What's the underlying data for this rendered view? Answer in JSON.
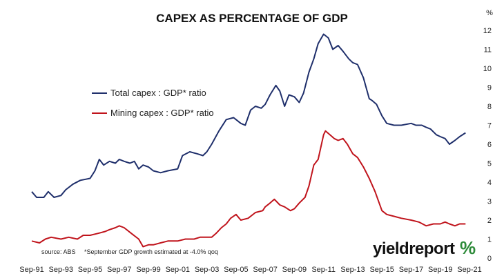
{
  "chart_data": {
    "type": "line",
    "title": "CAPEX AS PERCENTAGE OF GDP",
    "y_unit": "%",
    "ylim": [
      0,
      12
    ],
    "y_ticks": [
      "0",
      "1",
      "2",
      "3",
      "4",
      "5",
      "6",
      "7",
      "8",
      "9",
      "10",
      "11",
      "12"
    ],
    "x_range": [
      1991.67,
      2021.67
    ],
    "x_ticks": [
      {
        "x": 1991.67,
        "label": "Sep-91"
      },
      {
        "x": 1993.67,
        "label": "Sep-93"
      },
      {
        "x": 1995.67,
        "label": "Sep-95"
      },
      {
        "x": 1997.67,
        "label": "Sep-97"
      },
      {
        "x": 1999.67,
        "label": "Sep-99"
      },
      {
        "x": 2001.67,
        "label": "Sep-01"
      },
      {
        "x": 2003.67,
        "label": "Sep-03"
      },
      {
        "x": 2005.67,
        "label": "Sep-05"
      },
      {
        "x": 2007.67,
        "label": "Sep-07"
      },
      {
        "x": 2009.67,
        "label": "Sep-09"
      },
      {
        "x": 2011.67,
        "label": "Sep-11"
      },
      {
        "x": 2013.67,
        "label": "Sep-13"
      },
      {
        "x": 2015.67,
        "label": "Sep-15"
      },
      {
        "x": 2017.67,
        "label": "Sep-17"
      },
      {
        "x": 2019.67,
        "label": "Sep-19"
      },
      {
        "x": 2021.67,
        "label": "Sep-21"
      }
    ],
    "grid": false,
    "legend_position": "upper-left",
    "series": [
      {
        "name": "Total capex : GDP* ratio",
        "color": "#1f2f6b",
        "points": [
          [
            1991.67,
            3.5
          ],
          [
            1992.0,
            3.2
          ],
          [
            1992.5,
            3.2
          ],
          [
            1992.8,
            3.5
          ],
          [
            1993.2,
            3.2
          ],
          [
            1993.67,
            3.3
          ],
          [
            1994.0,
            3.6
          ],
          [
            1994.5,
            3.9
          ],
          [
            1995.0,
            4.1
          ],
          [
            1995.67,
            4.2
          ],
          [
            1996.0,
            4.6
          ],
          [
            1996.3,
            5.2
          ],
          [
            1996.6,
            4.9
          ],
          [
            1997.0,
            5.1
          ],
          [
            1997.4,
            5.0
          ],
          [
            1997.67,
            5.2
          ],
          [
            1998.0,
            5.1
          ],
          [
            1998.4,
            5.0
          ],
          [
            1998.7,
            5.1
          ],
          [
            1999.0,
            4.7
          ],
          [
            1999.3,
            4.9
          ],
          [
            1999.67,
            4.8
          ],
          [
            2000.0,
            4.6
          ],
          [
            2000.5,
            4.5
          ],
          [
            2001.0,
            4.6
          ],
          [
            2001.67,
            4.7
          ],
          [
            2002.0,
            5.4
          ],
          [
            2002.5,
            5.6
          ],
          [
            2003.0,
            5.5
          ],
          [
            2003.4,
            5.4
          ],
          [
            2003.67,
            5.6
          ],
          [
            2004.0,
            6.0
          ],
          [
            2004.5,
            6.7
          ],
          [
            2005.0,
            7.3
          ],
          [
            2005.5,
            7.4
          ],
          [
            2005.67,
            7.3
          ],
          [
            2006.0,
            7.1
          ],
          [
            2006.3,
            7.0
          ],
          [
            2006.67,
            7.8
          ],
          [
            2007.0,
            8.0
          ],
          [
            2007.4,
            7.9
          ],
          [
            2007.67,
            8.1
          ],
          [
            2008.0,
            8.6
          ],
          [
            2008.4,
            9.1
          ],
          [
            2008.67,
            8.8
          ],
          [
            2009.0,
            8.0
          ],
          [
            2009.3,
            8.6
          ],
          [
            2009.67,
            8.5
          ],
          [
            2010.0,
            8.2
          ],
          [
            2010.3,
            8.7
          ],
          [
            2010.67,
            9.8
          ],
          [
            2011.0,
            10.5
          ],
          [
            2011.3,
            11.3
          ],
          [
            2011.67,
            11.8
          ],
          [
            2012.0,
            11.6
          ],
          [
            2012.3,
            11.0
          ],
          [
            2012.67,
            11.2
          ],
          [
            2013.0,
            10.9
          ],
          [
            2013.4,
            10.5
          ],
          [
            2013.67,
            10.3
          ],
          [
            2014.0,
            10.2
          ],
          [
            2014.4,
            9.5
          ],
          [
            2014.8,
            8.4
          ],
          [
            2015.0,
            8.3
          ],
          [
            2015.3,
            8.1
          ],
          [
            2015.67,
            7.5
          ],
          [
            2016.0,
            7.1
          ],
          [
            2016.5,
            7.0
          ],
          [
            2017.0,
            7.0
          ],
          [
            2017.67,
            7.1
          ],
          [
            2018.0,
            7.0
          ],
          [
            2018.4,
            7.0
          ],
          [
            2018.67,
            6.9
          ],
          [
            2019.0,
            6.8
          ],
          [
            2019.4,
            6.5
          ],
          [
            2019.67,
            6.4
          ],
          [
            2020.0,
            6.3
          ],
          [
            2020.3,
            6.0
          ],
          [
            2020.67,
            6.2
          ],
          [
            2021.0,
            6.4
          ],
          [
            2021.4,
            6.6
          ]
        ]
      },
      {
        "name": "Mining capex : GDP* ratio",
        "color": "#c0141c",
        "points": [
          [
            1991.67,
            0.9
          ],
          [
            1992.2,
            0.8
          ],
          [
            1992.6,
            1.0
          ],
          [
            1993.0,
            1.1
          ],
          [
            1993.67,
            1.0
          ],
          [
            1994.2,
            1.1
          ],
          [
            1994.8,
            1.0
          ],
          [
            1995.2,
            1.2
          ],
          [
            1995.67,
            1.2
          ],
          [
            1996.2,
            1.3
          ],
          [
            1996.7,
            1.4
          ],
          [
            1997.0,
            1.5
          ],
          [
            1997.4,
            1.6
          ],
          [
            1997.67,
            1.7
          ],
          [
            1998.0,
            1.6
          ],
          [
            1998.5,
            1.3
          ],
          [
            1999.0,
            1.0
          ],
          [
            1999.3,
            0.6
          ],
          [
            1999.67,
            0.7
          ],
          [
            2000.0,
            0.7
          ],
          [
            2000.5,
            0.8
          ],
          [
            2001.0,
            0.9
          ],
          [
            2001.67,
            0.9
          ],
          [
            2002.2,
            1.0
          ],
          [
            2002.8,
            1.0
          ],
          [
            2003.2,
            1.1
          ],
          [
            2003.67,
            1.1
          ],
          [
            2004.0,
            1.1
          ],
          [
            2004.3,
            1.3
          ],
          [
            2004.67,
            1.6
          ],
          [
            2005.0,
            1.8
          ],
          [
            2005.3,
            2.1
          ],
          [
            2005.67,
            2.3
          ],
          [
            2006.0,
            2.0
          ],
          [
            2006.5,
            2.1
          ],
          [
            2007.0,
            2.4
          ],
          [
            2007.5,
            2.5
          ],
          [
            2007.67,
            2.7
          ],
          [
            2008.0,
            2.9
          ],
          [
            2008.3,
            3.1
          ],
          [
            2008.67,
            2.8
          ],
          [
            2009.0,
            2.7
          ],
          [
            2009.4,
            2.5
          ],
          [
            2009.67,
            2.6
          ],
          [
            2010.0,
            2.9
          ],
          [
            2010.4,
            3.2
          ],
          [
            2010.67,
            3.8
          ],
          [
            2011.0,
            4.9
          ],
          [
            2011.3,
            5.2
          ],
          [
            2011.67,
            6.5
          ],
          [
            2011.8,
            6.7
          ],
          [
            2012.1,
            6.5
          ],
          [
            2012.4,
            6.3
          ],
          [
            2012.67,
            6.2
          ],
          [
            2013.0,
            6.3
          ],
          [
            2013.3,
            6.0
          ],
          [
            2013.67,
            5.5
          ],
          [
            2014.0,
            5.3
          ],
          [
            2014.4,
            4.8
          ],
          [
            2014.8,
            4.2
          ],
          [
            2015.2,
            3.5
          ],
          [
            2015.67,
            2.5
          ],
          [
            2016.0,
            2.3
          ],
          [
            2016.5,
            2.2
          ],
          [
            2017.0,
            2.1
          ],
          [
            2017.67,
            2.0
          ],
          [
            2018.2,
            1.9
          ],
          [
            2018.7,
            1.7
          ],
          [
            2019.2,
            1.8
          ],
          [
            2019.67,
            1.8
          ],
          [
            2020.0,
            1.9
          ],
          [
            2020.3,
            1.8
          ],
          [
            2020.67,
            1.7
          ],
          [
            2021.0,
            1.8
          ],
          [
            2021.4,
            1.8
          ]
        ]
      }
    ],
    "annotations": {
      "source": "source: ABS",
      "footnote": "*September GDP growth estimated at -4.0% qoq"
    }
  },
  "logo": {
    "text": "yieldreport",
    "pct": "%",
    "pct_color_top": "#c0141c",
    "pct_color_bottom": "#2e8b3a"
  }
}
